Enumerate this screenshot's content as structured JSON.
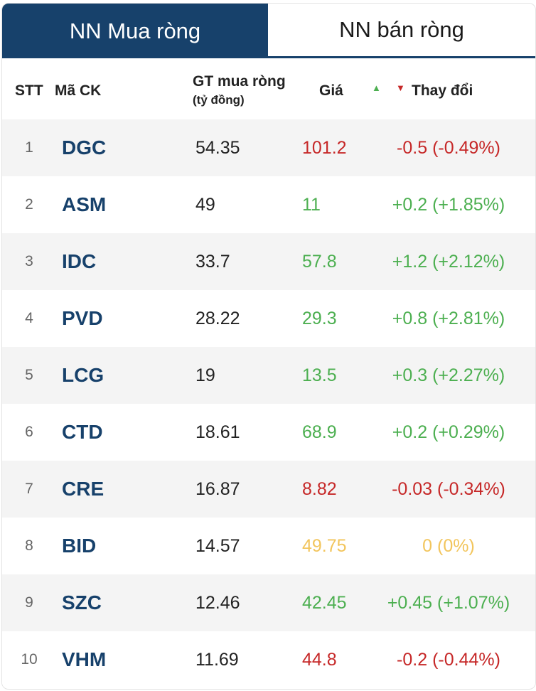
{
  "tabs": {
    "buy": "NN Mua ròng",
    "sell": "NN bán ròng"
  },
  "header": {
    "stt": "STT",
    "code": "Mã CK",
    "value_line1": "GT mua ròng",
    "value_line2": "(tỷ đồng)",
    "price": "Giá",
    "up_arrow": "▲",
    "down_arrow": "▼",
    "change": "Thay đổi"
  },
  "colors": {
    "up": "#4caf50",
    "down": "#c62828",
    "flat": "#f2c55c",
    "brand": "#17416b"
  },
  "rows": [
    {
      "stt": "1",
      "code": "DGC",
      "value": "54.35",
      "price": "101.2",
      "change": "-0.5 (-0.49%)",
      "trend": "down"
    },
    {
      "stt": "2",
      "code": "ASM",
      "value": "49",
      "price": "11",
      "change": "+0.2 (+1.85%)",
      "trend": "up"
    },
    {
      "stt": "3",
      "code": "IDC",
      "value": "33.7",
      "price": "57.8",
      "change": "+1.2 (+2.12%)",
      "trend": "up"
    },
    {
      "stt": "4",
      "code": "PVD",
      "value": "28.22",
      "price": "29.3",
      "change": "+0.8 (+2.81%)",
      "trend": "up"
    },
    {
      "stt": "5",
      "code": "LCG",
      "value": "19",
      "price": "13.5",
      "change": "+0.3 (+2.27%)",
      "trend": "up"
    },
    {
      "stt": "6",
      "code": "CTD",
      "value": "18.61",
      "price": "68.9",
      "change": "+0.2 (+0.29%)",
      "trend": "up"
    },
    {
      "stt": "7",
      "code": "CRE",
      "value": "16.87",
      "price": "8.82",
      "change": "-0.03 (-0.34%)",
      "trend": "down"
    },
    {
      "stt": "8",
      "code": "BID",
      "value": "14.57",
      "price": "49.75",
      "change": "0 (0%)",
      "trend": "flat"
    },
    {
      "stt": "9",
      "code": "SZC",
      "value": "12.46",
      "price": "42.45",
      "change": "+0.45 (+1.07%)",
      "trend": "up"
    },
    {
      "stt": "10",
      "code": "VHM",
      "value": "11.69",
      "price": "44.8",
      "change": "-0.2 (-0.44%)",
      "trend": "down"
    }
  ]
}
